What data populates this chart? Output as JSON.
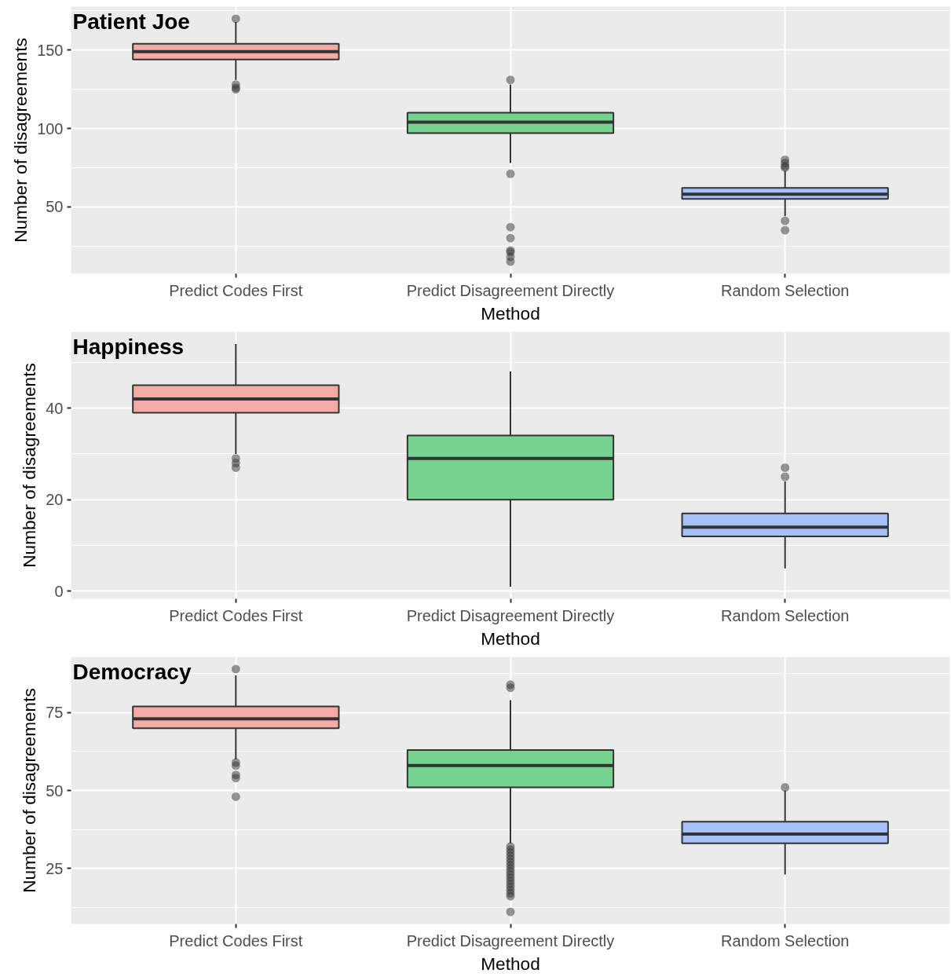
{
  "chart_data": [
    {
      "type": "box",
      "title": "Patient Joe",
      "xlabel": "Method",
      "ylabel": "Number of disagreements",
      "categories": [
        "Predict Codes First",
        "Predict Disagreement Directly",
        "Random Selection"
      ],
      "colors": [
        "#f4aaa5",
        "#76d28f",
        "#a5c1f8"
      ],
      "ylim": [
        7.25,
        177.75
      ],
      "yticks": [
        50,
        100,
        150
      ],
      "grid": true,
      "boxes": [
        {
          "low": 131,
          "q1": 144,
          "median": 149,
          "q3": 154,
          "high": 168,
          "outliers": [
            170,
            128,
            126,
            125
          ]
        },
        {
          "low": 78,
          "q1": 97,
          "median": 104,
          "q3": 110,
          "high": 128,
          "outliers": [
            131,
            71,
            37,
            30,
            22,
            21,
            18,
            15
          ]
        },
        {
          "low": 44,
          "q1": 55,
          "median": 58,
          "q3": 62,
          "high": 73,
          "outliers": [
            80,
            78,
            76,
            75,
            41,
            35
          ]
        }
      ]
    },
    {
      "type": "box",
      "title": "Happiness",
      "xlabel": "Method",
      "ylabel": "Number of disagreements",
      "categories": [
        "Predict Codes First",
        "Predict Disagreement Directly",
        "Random Selection"
      ],
      "colors": [
        "#f4aaa5",
        "#76d28f",
        "#a5c1f8"
      ],
      "ylim": [
        -1.65,
        56.65
      ],
      "yticks": [
        0,
        20,
        40
      ],
      "grid": true,
      "boxes": [
        {
          "low": 30,
          "q1": 39,
          "median": 42,
          "q3": 45,
          "high": 54,
          "outliers": [
            29,
            28,
            27
          ]
        },
        {
          "low": 1,
          "q1": 20,
          "median": 29,
          "q3": 34,
          "high": 48
        },
        {
          "low": 5,
          "q1": 12,
          "median": 14,
          "q3": 17,
          "high": 24,
          "outliers": [
            27,
            25
          ]
        }
      ]
    },
    {
      "type": "box",
      "title": "Democracy",
      "xlabel": "Method",
      "ylabel": "Number of disagreements",
      "categories": [
        "Predict Codes First",
        "Predict Disagreement Directly",
        "Random Selection"
      ],
      "colors": [
        "#f4aaa5",
        "#76d28f",
        "#a5c1f8"
      ],
      "ylim": [
        7.1,
        92.9
      ],
      "yticks": [
        25,
        50,
        75
      ],
      "grid": true,
      "boxes": [
        {
          "low": 60,
          "q1": 70,
          "median": 73,
          "q3": 77,
          "high": 87,
          "outliers": [
            89,
            59,
            58,
            55,
            54,
            48
          ]
        },
        {
          "low": 33,
          "q1": 51,
          "median": 58,
          "q3": 63,
          "high": 79,
          "outliers": [
            84,
            83,
            32,
            31,
            30,
            29,
            28,
            27,
            26,
            25,
            24,
            23,
            22,
            21,
            20,
            19,
            18,
            17,
            16,
            11
          ]
        },
        {
          "low": 23,
          "q1": 33,
          "median": 36,
          "q3": 40,
          "high": 50,
          "outliers": [
            51
          ]
        }
      ]
    }
  ]
}
